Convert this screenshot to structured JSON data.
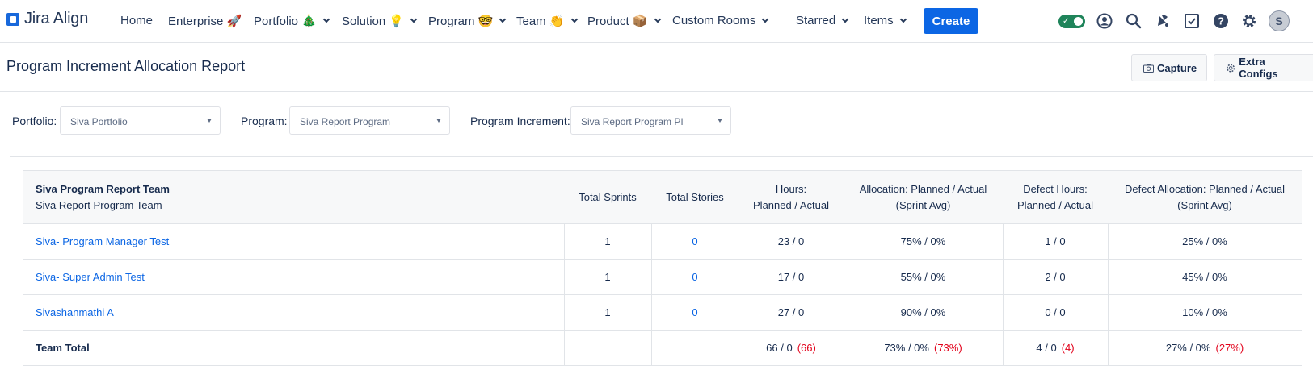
{
  "brand": {
    "name": "Jira Align"
  },
  "nav": {
    "items": [
      {
        "label": "Home",
        "chevron": false
      },
      {
        "label": "Enterprise 🚀",
        "chevron": false
      },
      {
        "label": "Portfolio 🎄",
        "chevron": true
      },
      {
        "label": "Solution 💡",
        "chevron": true
      },
      {
        "label": "Program 🤓",
        "chevron": true
      },
      {
        "label": "Team 👏",
        "chevron": true
      },
      {
        "label": "Product 📦",
        "chevron": true
      },
      {
        "label": "Custom Rooms",
        "chevron": true
      },
      {
        "label": "Starred",
        "chevron": true
      },
      {
        "label": "Items",
        "chevron": true
      }
    ],
    "create_label": "Create",
    "toolbar_icons": [
      "toggle-icon",
      "profile-icon",
      "search-icon",
      "notifications-icon",
      "checklist-icon",
      "help-icon",
      "settings-icon",
      "avatar"
    ],
    "avatar_initial": "S"
  },
  "page": {
    "title": "Program Increment Allocation Report",
    "capture_label": "Capture",
    "extra_configs_label": "Extra Configs"
  },
  "filters": {
    "portfolio": {
      "label": "Portfolio:",
      "value": "Siva Portfolio"
    },
    "program": {
      "label": "Program:",
      "value": "Siva Report Program"
    },
    "program_increment": {
      "label": "Program Increment:",
      "value": "Siva Report Program PI"
    }
  },
  "table": {
    "team_title": "Siva Program Report Team",
    "team_subtitle": "Siva Report Program Team",
    "headers": {
      "total_sprints": "Total Sprints",
      "total_stories": "Total Stories",
      "hours_1": "Hours:",
      "hours_2": "Planned / Actual",
      "allocation_1": "Allocation: Planned / Actual",
      "allocation_2": "(Sprint Avg)",
      "defect_hours_1": "Defect Hours:",
      "defect_hours_2": "Planned / Actual",
      "defect_allocation_1": "Defect Allocation: Planned / Actual",
      "defect_allocation_2": "(Sprint Avg)"
    },
    "rows": [
      {
        "name": "Siva- Program Manager Test",
        "sprints": "1",
        "stories": "0",
        "hours": "23 / 0",
        "allocation": "75% / 0%",
        "defect_hours": "1 / 0",
        "defect_allocation": "25% / 0%"
      },
      {
        "name": "Siva- Super Admin Test",
        "sprints": "1",
        "stories": "0",
        "hours": "17 / 0",
        "allocation": "55% / 0%",
        "defect_hours": "2 / 0",
        "defect_allocation": "45% / 0%"
      },
      {
        "name": "Sivashanmathi A",
        "sprints": "1",
        "stories": "0",
        "hours": "27 / 0",
        "allocation": "90% / 0%",
        "defect_hours": "0 / 0",
        "defect_allocation": "10% / 0%"
      }
    ],
    "total": {
      "label": "Team Total",
      "hours": "66 / 0",
      "hours_variance": "(66)",
      "allocation": "73% / 0%",
      "allocation_variance": "(73%)",
      "defect_hours": "4 / 0",
      "defect_hours_variance": "(4)",
      "defect_allocation": "27% / 0%",
      "defect_allocation_variance": "(27%)"
    }
  },
  "colors": {
    "accent": "#0c66e4",
    "negative": "#e2001a",
    "toggle_on": "#1f845a"
  }
}
